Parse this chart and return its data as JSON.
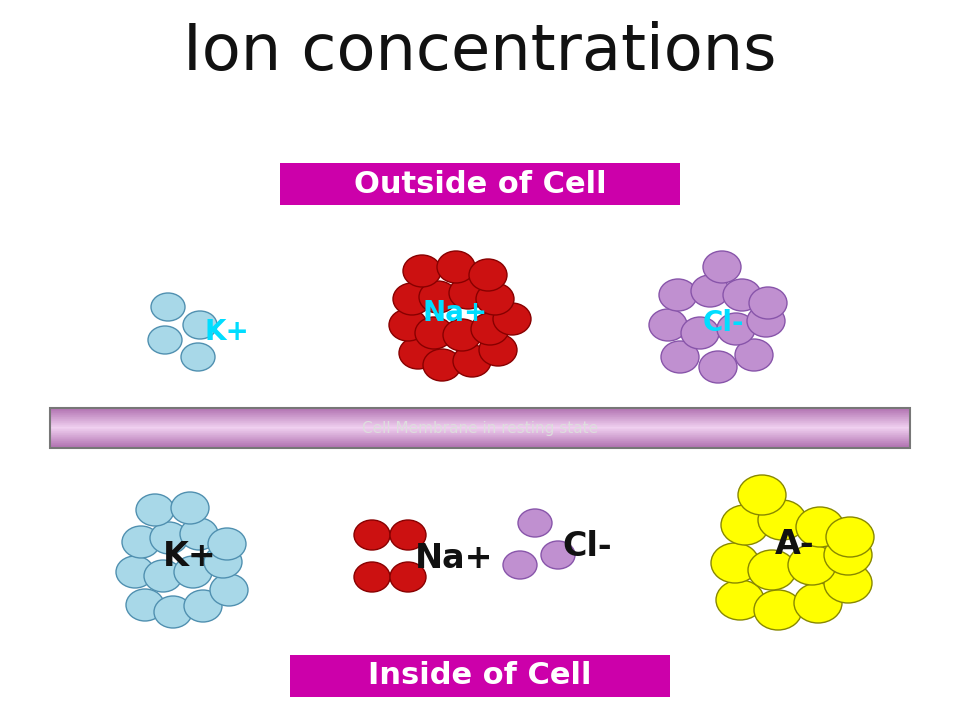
{
  "title": "Ion concentrations",
  "title_fontsize": 46,
  "bg_color": "#ffffff",
  "membrane_color_left": "#e8b4e8",
  "membrane_color_center": "#f0d0f0",
  "membrane_border_color": "#777777",
  "membrane_label": "Cell Membrane in resting state",
  "membrane_label_color": "#dddddd",
  "outside_label": "Outside of Cell",
  "outside_label_bg": "#cc00aa",
  "outside_label_color": "#ffffff",
  "inside_label": "Inside of Cell",
  "inside_label_bg": "#cc00aa",
  "inside_label_color": "#ffffff",
  "K_color": "#a8d8e8",
  "K_edge_color": "#5090b0",
  "Na_color": "#cc1111",
  "Na_edge_color": "#880000",
  "Cl_color": "#c090d0",
  "Cl_edge_color": "#8855aa",
  "A_color": "#ffff00",
  "A_edge_color": "#888800",
  "ion_label_color_outside": "#00ddff",
  "label_fontsize_outside": 20,
  "label_fontsize_inside": 24
}
